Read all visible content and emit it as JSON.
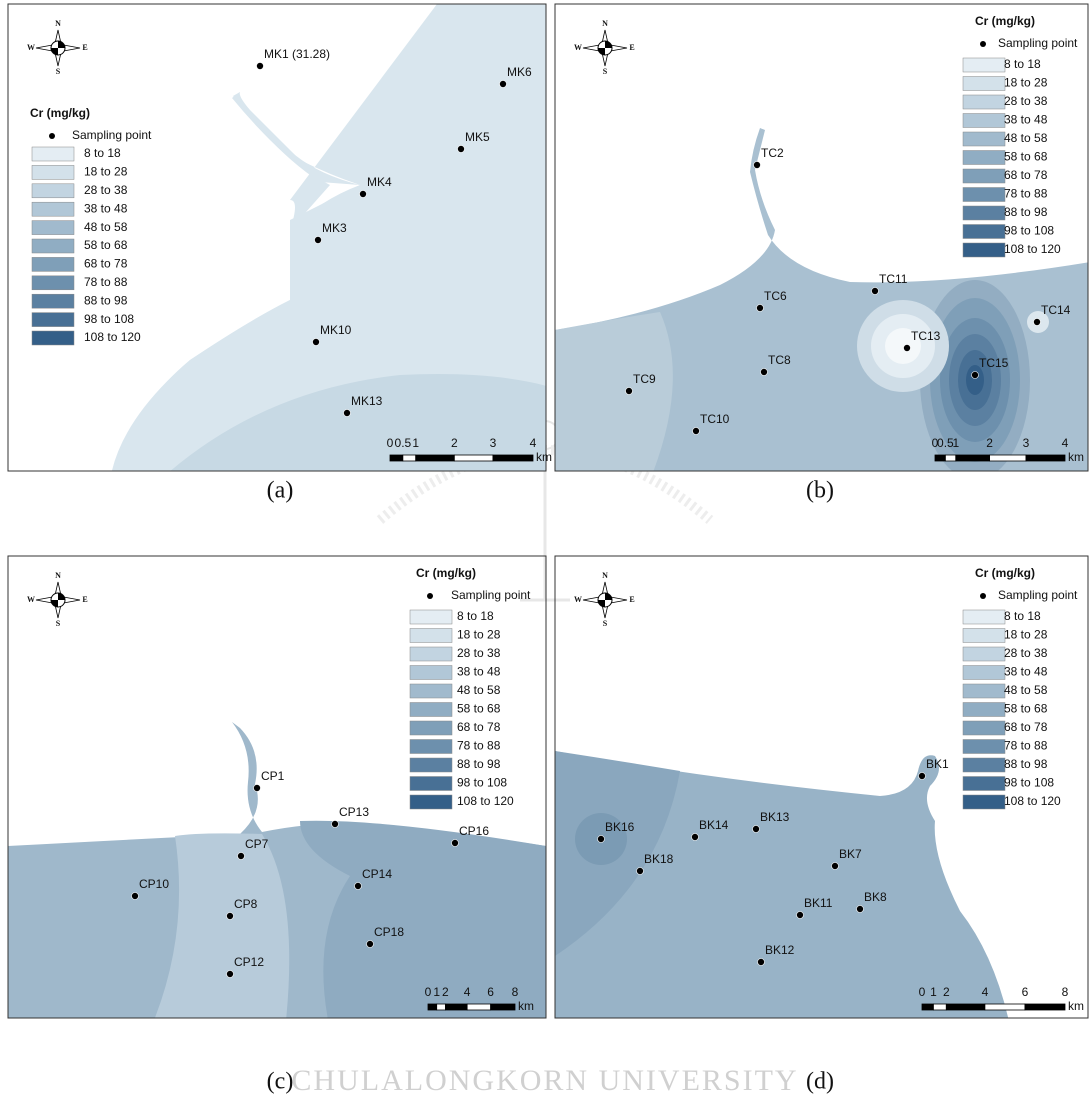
{
  "panels": [
    {
      "caption": "(a)",
      "compass": {
        "n": "N",
        "s": "S",
        "w": "W",
        "e": "E"
      },
      "legend": {
        "title": "Cr (mg/kg)",
        "point": "Sampling point",
        "classes": [
          "8 to 18",
          "18 to 28",
          "28 to 38",
          "38 to 48",
          "48 to 58",
          "58 to 68",
          "68 to 78",
          "78 to 88",
          "88 to 98",
          "98 to 108",
          "108 to 120"
        ]
      },
      "stations": [
        "MK1 (31.28)",
        "MK6",
        "MK5",
        "MK4",
        "MK3",
        "MK10",
        "MK13"
      ],
      "scale": {
        "ticks": [
          "0",
          "0.5",
          "1",
          "2",
          "3",
          "4"
        ],
        "unit": "km"
      }
    },
    {
      "caption": "(b)",
      "compass": {
        "n": "N",
        "s": "S",
        "w": "W",
        "e": "E"
      },
      "legend": {
        "title": "Cr (mg/kg)",
        "point": "Sampling point",
        "classes": [
          "8 to 18",
          "18 to 28",
          "28 to 38",
          "38 to 48",
          "48 to 58",
          "58 to 68",
          "68 to 78",
          "78 to 88",
          "88 to 98",
          "98 to 108",
          "108 to 120"
        ]
      },
      "stations": [
        "TC2",
        "TC11",
        "TC6",
        "TC14",
        "TC13",
        "TC8",
        "TC15",
        "TC9",
        "TC10"
      ],
      "scale": {
        "ticks": [
          "0",
          "0.5",
          "1",
          "2",
          "3",
          "4"
        ],
        "unit": "km"
      }
    },
    {
      "caption": "(c)",
      "compass": {
        "n": "N",
        "s": "S",
        "w": "W",
        "e": "E"
      },
      "legend": {
        "title": "Cr (mg/kg)",
        "point": "Sampling point",
        "classes": [
          "8 to 18",
          "18 to 28",
          "28 to 38",
          "38 to 48",
          "48 to 58",
          "58 to 68",
          "68 to 78",
          "78 to 88",
          "88 to 98",
          "98 to 108",
          "108 to 120"
        ]
      },
      "stations": [
        "CP1",
        "CP13",
        "CP16",
        "CP7",
        "CP14",
        "CP10",
        "CP8",
        "CP18",
        "CP12"
      ],
      "scale": {
        "ticks": [
          "0",
          "1",
          "2",
          "4",
          "6",
          "8"
        ],
        "unit": "km"
      }
    },
    {
      "caption": "(d)",
      "compass": {
        "n": "N",
        "s": "S",
        "w": "W",
        "e": "E"
      },
      "legend": {
        "title": "Cr (mg/kg)",
        "point": "Sampling point",
        "classes": [
          "8 to 18",
          "18 to 28",
          "28 to 38",
          "38 to 48",
          "48 to 58",
          "58 to 68",
          "68 to 78",
          "78 to 88",
          "88 to 98",
          "98 to 108",
          "108 to 120"
        ]
      },
      "stations": [
        "BK1",
        "BK16",
        "BK13",
        "BK14",
        "BK18",
        "BK7",
        "BK11",
        "BK8",
        "BK12"
      ],
      "scale": {
        "ticks": [
          "0",
          "1",
          "2",
          "4",
          "6",
          "8"
        ],
        "unit": "km"
      }
    }
  ],
  "watermark": "CHULALONGKORN UNIVERSITY"
}
